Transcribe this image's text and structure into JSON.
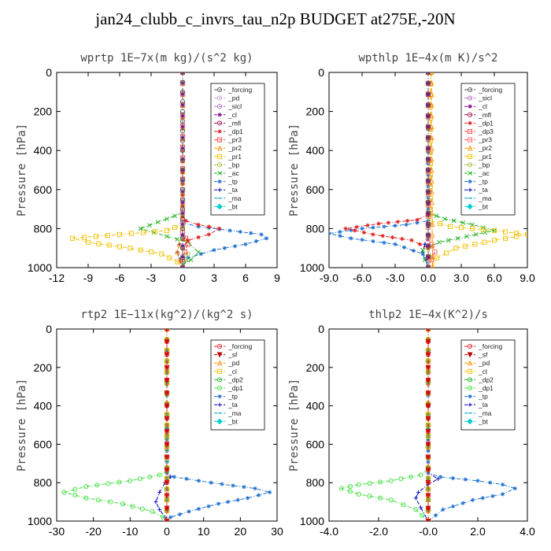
{
  "title": "jan24_clubb_c_invrs_tau_n2p  BUDGET at275E,-20N",
  "chart_data": [
    {
      "type": "line",
      "title": "wprtp   1E−7x(m kg)/(s^2 kg)",
      "ylabel": "Pressure [hPa]",
      "xlim": [
        -12,
        9
      ],
      "ylim": [
        0,
        1000
      ],
      "y_inverted": true,
      "xticks": [
        -12,
        -9,
        -6,
        -3,
        0,
        3,
        6,
        9
      ],
      "xtick_labels": [
        "-12",
        "-9",
        "-6",
        "-3",
        "0",
        "3",
        "6",
        "9"
      ],
      "yticks": [
        0,
        200,
        400,
        600,
        800,
        1000
      ],
      "legend_position": "top-right",
      "series": [
        {
          "name": "_forcing",
          "color": "#555555",
          "marker": "circle",
          "x": [
            0,
            0,
            0,
            0,
            0,
            0,
            0
          ],
          "y": [
            0,
            200,
            400,
            600,
            800,
            900,
            1000
          ]
        },
        {
          "name": "_pd",
          "color": "#c8a0d8",
          "marker": "circle",
          "x": [
            0,
            0,
            0
          ],
          "y": [
            0,
            500,
            1000
          ]
        },
        {
          "name": "_sicl",
          "color": "#b070c8",
          "marker": "circle",
          "x": [
            0,
            0,
            0
          ],
          "y": [
            0,
            500,
            1000
          ]
        },
        {
          "name": "_cl",
          "color": "#8b008b",
          "marker": "star",
          "x": [
            0,
            0,
            0
          ],
          "y": [
            0,
            500,
            1000
          ]
        },
        {
          "name": "_mfl",
          "color": "#a01050",
          "marker": "circle",
          "x": [
            0,
            0,
            0
          ],
          "y": [
            0,
            500,
            1000
          ]
        },
        {
          "name": "_dp1",
          "color": "#e02020",
          "marker": "star",
          "x": [
            0,
            0,
            0.3,
            1.5,
            3.5,
            2.5,
            0.5,
            0,
            0
          ],
          "y": [
            0,
            740,
            760,
            780,
            800,
            830,
            860,
            900,
            1000
          ]
        },
        {
          "name": "_pr3",
          "color": "#ff4040",
          "marker": "square",
          "x": [
            0,
            0,
            0.3,
            0.5,
            0.2,
            0,
            0
          ],
          "y": [
            0,
            820,
            850,
            880,
            920,
            960,
            1000
          ]
        },
        {
          "name": "_pr2",
          "color": "#ff9000",
          "marker": "triangle",
          "x": [
            0,
            0,
            -0.3,
            -0.5,
            -0.2,
            0
          ],
          "y": [
            0,
            850,
            880,
            920,
            960,
            1000
          ]
        },
        {
          "name": "_pr1",
          "color": "#f0c000",
          "marker": "square",
          "x": [
            0,
            0,
            -1.5,
            -6,
            -10.5,
            -9,
            -5,
            -2,
            -0.5,
            0
          ],
          "y": [
            0,
            780,
            810,
            830,
            850,
            870,
            900,
            930,
            970,
            1000
          ]
        },
        {
          "name": "_bp",
          "color": "#a0c040",
          "marker": "circle",
          "x": [
            0,
            0,
            0.5,
            0.3,
            0
          ],
          "y": [
            0,
            900,
            930,
            960,
            1000
          ]
        },
        {
          "name": "_ac",
          "color": "#20b020",
          "marker": "x",
          "x": [
            0,
            0,
            -1.5,
            -4,
            -1.5,
            0.5,
            1.5,
            0.8,
            0,
            0
          ],
          "y": [
            0,
            720,
            750,
            800,
            840,
            870,
            920,
            960,
            985,
            1000
          ]
        },
        {
          "name": "_tp",
          "color": "#2070d0",
          "marker": "star",
          "x": [
            0,
            0,
            1.5,
            4.5,
            7.5,
            8,
            6,
            3,
            0.5,
            0
          ],
          "y": [
            0,
            770,
            790,
            810,
            830,
            850,
            880,
            910,
            950,
            1000
          ]
        },
        {
          "name": "_ta",
          "color": "#0000c0",
          "marker": "plus",
          "x": [
            0,
            0,
            -0.3,
            -0.5,
            -0.3,
            0
          ],
          "y": [
            0,
            850,
            880,
            920,
            960,
            1000
          ]
        },
        {
          "name": "_ma",
          "color": "#00a0c0",
          "marker": "dash",
          "x": [
            0,
            0,
            0
          ],
          "y": [
            0,
            500,
            1000
          ]
        },
        {
          "name": "_bt",
          "color": "#00d0d0",
          "marker": "diamond",
          "x": [
            0,
            0,
            0
          ],
          "y": [
            0,
            500,
            1000
          ]
        }
      ]
    },
    {
      "type": "line",
      "title": "wpthlp   1E−4x(m K)/s^2",
      "ylabel": "Pressure [hPa]",
      "xlim": [
        -9,
        9
      ],
      "ylim": [
        0,
        1000
      ],
      "y_inverted": true,
      "xticks": [
        -9,
        -6,
        -3,
        0,
        3,
        6,
        9
      ],
      "xtick_labels": [
        "-9.0",
        "-6.0",
        "-3.0",
        "0.0",
        "3.0",
        "6.0",
        "9.0"
      ],
      "yticks": [
        0,
        200,
        400,
        600,
        800,
        1000
      ],
      "legend_position": "top-right",
      "series": [
        {
          "name": "_forcing",
          "color": "#555555",
          "marker": "circle",
          "x": [
            0,
            0,
            0
          ],
          "y": [
            0,
            500,
            1000
          ]
        },
        {
          "name": "_sicl",
          "color": "#b070c8",
          "marker": "circle",
          "x": [
            0,
            0,
            0
          ],
          "y": [
            0,
            500,
            1000
          ]
        },
        {
          "name": "_cl",
          "color": "#8b008b",
          "marker": "star",
          "x": [
            0,
            0,
            0
          ],
          "y": [
            0,
            500,
            1000
          ]
        },
        {
          "name": "_mfl",
          "color": "#a01050",
          "marker": "circle",
          "x": [
            0,
            0,
            0
          ],
          "y": [
            0,
            500,
            1000
          ]
        },
        {
          "name": "_dp1",
          "color": "#e02020",
          "marker": "star",
          "x": [
            0,
            0,
            -1,
            -4.5,
            -7.5,
            -5,
            -1.5,
            0,
            0
          ],
          "y": [
            0,
            730,
            755,
            775,
            800,
            830,
            860,
            900,
            1000
          ]
        },
        {
          "name": "_dp3",
          "color": "#ff4040",
          "marker": "square",
          "x": [
            0,
            0,
            0
          ],
          "y": [
            0,
            500,
            1000
          ]
        },
        {
          "name": "_pr3",
          "color": "#ff6060",
          "marker": "square",
          "x": [
            0,
            0,
            0.3,
            0.6,
            0.3,
            0
          ],
          "y": [
            0,
            850,
            880,
            920,
            960,
            1000
          ]
        },
        {
          "name": "_pr2",
          "color": "#ff9000",
          "marker": "triangle",
          "x": [
            0.3,
            0.3,
            0.4
          ],
          "y": [
            0,
            500,
            1000
          ]
        },
        {
          "name": "_pr1",
          "color": "#f0c000",
          "marker": "square",
          "x": [
            0.2,
            0.2,
            2,
            6,
            9,
            6,
            2.5,
            0.8,
            0.3
          ],
          "y": [
            0,
            760,
            790,
            810,
            830,
            860,
            900,
            950,
            1000
          ]
        },
        {
          "name": "_bp",
          "color": "#a0c040",
          "marker": "circle",
          "x": [
            0,
            0,
            0.3,
            0
          ],
          "y": [
            0,
            900,
            950,
            1000
          ]
        },
        {
          "name": "_ac",
          "color": "#20b020",
          "marker": "x",
          "x": [
            0,
            0,
            1.5,
            4,
            6,
            3.5,
            1,
            -0.5,
            -0.3,
            0
          ],
          "y": [
            0,
            720,
            750,
            780,
            810,
            840,
            870,
            910,
            960,
            1000
          ]
        },
        {
          "name": "_tp",
          "color": "#2070d0",
          "marker": "star",
          "x": [
            0,
            0,
            -2,
            -6,
            -9,
            -7,
            -3,
            -0.5,
            0
          ],
          "y": [
            0,
            760,
            780,
            800,
            825,
            850,
            880,
            930,
            1000
          ]
        },
        {
          "name": "_ta",
          "color": "#0000c0",
          "marker": "plus",
          "x": [
            0,
            0,
            -0.3,
            -0.5,
            -0.2,
            0
          ],
          "y": [
            0,
            850,
            880,
            920,
            960,
            1000
          ]
        },
        {
          "name": "_ma",
          "color": "#00a0c0",
          "marker": "dash",
          "x": [
            0,
            0,
            0
          ],
          "y": [
            0,
            500,
            1000
          ]
        },
        {
          "name": "_bt",
          "color": "#00d0d0",
          "marker": "diamond",
          "x": [
            0,
            0,
            0
          ],
          "y": [
            0,
            500,
            1000
          ]
        }
      ]
    },
    {
      "type": "line",
      "title": "rtp2   1E−11x(kg^2)/(kg^2 s)",
      "ylabel": "Pressure [hPa]",
      "xlim": [
        -30,
        30
      ],
      "ylim": [
        0,
        1000
      ],
      "y_inverted": true,
      "xticks": [
        -30,
        -20,
        -10,
        0,
        10,
        20,
        30
      ],
      "xtick_labels": [
        "-30",
        "-20",
        "-10",
        "0",
        "10",
        "20",
        "30"
      ],
      "yticks": [
        0,
        200,
        400,
        600,
        800,
        1000
      ],
      "legend_position": "top-right",
      "series": [
        {
          "name": "_forcing",
          "color": "#e02020",
          "marker": "circle",
          "x": [
            0,
            0,
            0,
            0,
            0,
            0
          ],
          "y": [
            0,
            200,
            400,
            600,
            800,
            1000
          ]
        },
        {
          "name": "_sf",
          "color": "#c00000",
          "marker": "triangle-down",
          "x": [
            0,
            0,
            0,
            0,
            0,
            0
          ],
          "y": [
            0,
            200,
            400,
            600,
            800,
            1000
          ]
        },
        {
          "name": "_pd",
          "color": "#ff9000",
          "marker": "triangle",
          "x": [
            0,
            0,
            0
          ],
          "y": [
            0,
            500,
            1000
          ]
        },
        {
          "name": "_cl",
          "color": "#f0c000",
          "marker": "square",
          "x": [
            0,
            0,
            0
          ],
          "y": [
            0,
            500,
            1000
          ]
        },
        {
          "name": "_dp2",
          "color": "#20b020",
          "marker": "circle",
          "x": [
            0,
            0,
            0
          ],
          "y": [
            0,
            500,
            1000
          ]
        },
        {
          "name": "_dp1",
          "color": "#40e040",
          "marker": "circle",
          "x": [
            0,
            0,
            -2,
            -10,
            -22,
            -28,
            -22,
            -12,
            -4,
            -1,
            0
          ],
          "y": [
            0,
            740,
            760,
            790,
            820,
            850,
            880,
            910,
            950,
            980,
            1000
          ]
        },
        {
          "name": "_tp",
          "color": "#2070d0",
          "marker": "star",
          "x": [
            0,
            0,
            2,
            12,
            24,
            28,
            22,
            14,
            6,
            1,
            0
          ],
          "y": [
            0,
            750,
            770,
            800,
            830,
            850,
            880,
            910,
            950,
            980,
            1000
          ]
        },
        {
          "name": "_ta",
          "color": "#0000c0",
          "marker": "plus",
          "x": [
            0,
            0,
            1,
            -0.5,
            -2,
            -3,
            -2,
            -0.5,
            0
          ],
          "y": [
            0,
            750,
            770,
            800,
            850,
            900,
            940,
            980,
            1000
          ]
        },
        {
          "name": "_ma",
          "color": "#00a0c0",
          "marker": "dash",
          "x": [
            0,
            0,
            0
          ],
          "y": [
            0,
            500,
            1000
          ]
        },
        {
          "name": "_bt",
          "color": "#00d0d0",
          "marker": "diamond",
          "x": [
            0,
            0,
            0
          ],
          "y": [
            0,
            500,
            1000
          ]
        }
      ]
    },
    {
      "type": "line",
      "title": "thlp2   1E−4x(K^2)/s",
      "ylabel": "Pressure [hPa]",
      "xlim": [
        -4,
        4
      ],
      "ylim": [
        0,
        1000
      ],
      "y_inverted": true,
      "xticks": [
        -4,
        -2,
        0,
        2,
        4
      ],
      "xtick_labels": [
        "-4.0",
        "-2.0",
        "-0.0",
        "2.0",
        "4.0"
      ],
      "yticks": [
        0,
        200,
        400,
        600,
        800,
        1000
      ],
      "legend_position": "top-right",
      "series": [
        {
          "name": "_forcing",
          "color": "#e02020",
          "marker": "circle",
          "x": [
            0,
            0,
            0,
            0,
            0,
            0
          ],
          "y": [
            0,
            200,
            400,
            600,
            800,
            1000
          ]
        },
        {
          "name": "_sf",
          "color": "#c00000",
          "marker": "triangle-down",
          "x": [
            0,
            0,
            0,
            0,
            0,
            0
          ],
          "y": [
            0,
            200,
            400,
            600,
            800,
            1000
          ]
        },
        {
          "name": "_pd",
          "color": "#ff9000",
          "marker": "triangle",
          "x": [
            0,
            0,
            0
          ],
          "y": [
            0,
            500,
            1000
          ]
        },
        {
          "name": "_cl",
          "color": "#f0c000",
          "marker": "square",
          "x": [
            0,
            0,
            0
          ],
          "y": [
            0,
            500,
            1000
          ]
        },
        {
          "name": "_dp2",
          "color": "#20b020",
          "marker": "circle",
          "x": [
            0,
            0,
            0
          ],
          "y": [
            0,
            500,
            1000
          ]
        },
        {
          "name": "_dp1",
          "color": "#40e040",
          "marker": "circle",
          "x": [
            0,
            0,
            -0.3,
            -1.5,
            -2.8,
            -3.5,
            -2.8,
            -1.5,
            -0.5,
            0
          ],
          "y": [
            0,
            730,
            760,
            790,
            810,
            830,
            860,
            890,
            940,
            1000
          ]
        },
        {
          "name": "_tp",
          "color": "#2070d0",
          "marker": "star",
          "x": [
            0,
            0,
            0.5,
            2,
            3,
            3.5,
            3,
            1.8,
            0.6,
            0
          ],
          "y": [
            0,
            750,
            770,
            790,
            810,
            830,
            860,
            890,
            940,
            1000
          ]
        },
        {
          "name": "_ta",
          "color": "#0000c0",
          "marker": "plus",
          "x": [
            0,
            0,
            0.4,
            0,
            -0.4,
            -0.5,
            -0.3,
            0
          ],
          "y": [
            0,
            750,
            780,
            810,
            850,
            880,
            930,
            1000
          ]
        },
        {
          "name": "_ma",
          "color": "#00a0c0",
          "marker": "dash",
          "x": [
            0,
            0,
            0
          ],
          "y": [
            0,
            500,
            1000
          ]
        },
        {
          "name": "_bt",
          "color": "#00d0d0",
          "marker": "diamond",
          "x": [
            0,
            0,
            0
          ],
          "y": [
            0,
            500,
            1000
          ]
        }
      ]
    }
  ]
}
